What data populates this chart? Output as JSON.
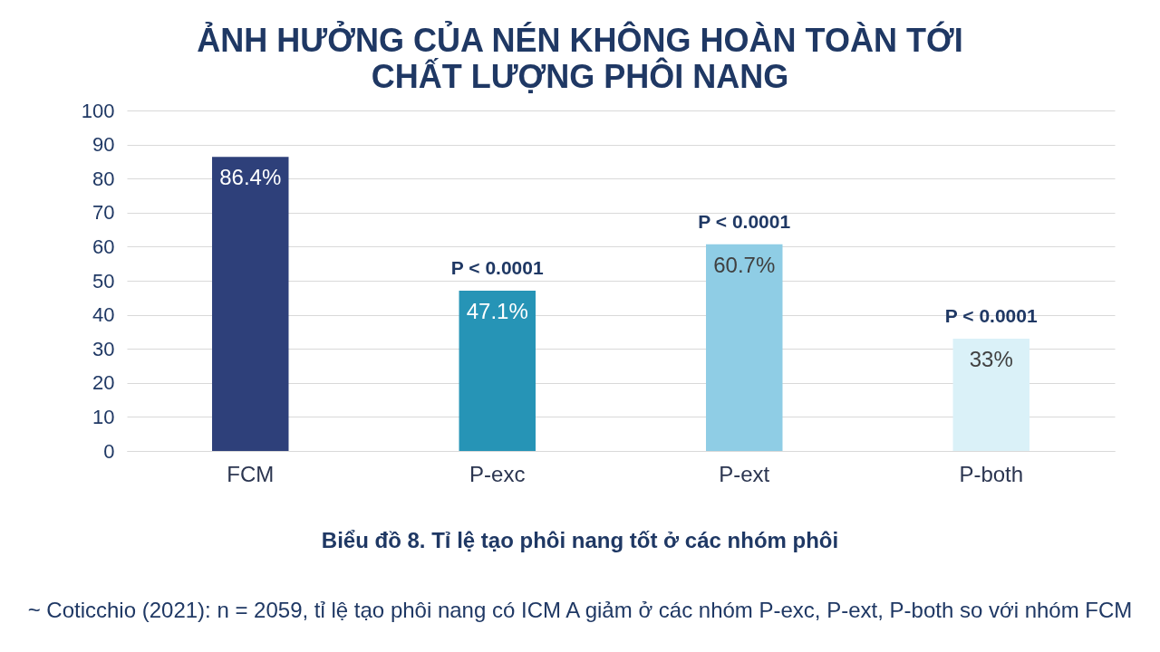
{
  "chart_data": {
    "type": "bar",
    "title": "ẢNH HƯỞNG CỦA NÉN KHÔNG HOÀN TOÀN TỚI\nCHẤT LƯỢNG PHÔI NANG",
    "categories": [
      "FCM",
      "P-exc",
      "P-ext",
      "P-both"
    ],
    "values": [
      86.4,
      47.1,
      60.7,
      33
    ],
    "colors": [
      "#2e407a",
      "#2694b6",
      "#8fcde5",
      "#daf1f8"
    ],
    "value_labels": [
      "86.4%",
      "47.1%",
      "60.7%",
      "33%"
    ],
    "ylim": [
      0,
      100
    ],
    "yticks": [
      0,
      10,
      20,
      30,
      40,
      50,
      60,
      70,
      80,
      90,
      100
    ],
    "grid": "y",
    "annotations": [
      {
        "text": "P < 0.0001",
        "x": "P-exc",
        "y": 47.1
      },
      {
        "text": "P < 0.0001",
        "x": "P-ext",
        "y": 60.7
      },
      {
        "text": "P < 0.0001",
        "x": "P-both",
        "y": 33
      },
      "Biểu đồ 8. Tỉ lệ tạo phôi nang tốt ở các nhóm phôi",
      "~ Coticchio (2021): n = 2059, tỉ lệ tạo phôi nang có ICM A giảm ở các nhóm P-exc, P-ext, P-both so với nhóm FCM"
    ]
  }
}
